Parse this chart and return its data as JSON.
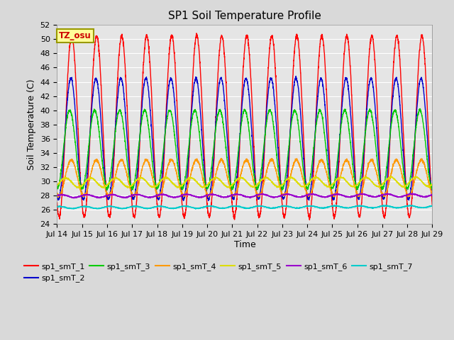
{
  "title": "SP1 Soil Temperature Profile",
  "xlabel": "Time",
  "ylabel": "Soil Temperature (C)",
  "ylim": [
    24,
    52
  ],
  "x_tick_labels": [
    "Jul 14",
    "Jul 15",
    "Jul 16",
    "Jul 17",
    "Jul 18",
    "Jul 19",
    "Jul 20",
    "Jul 21",
    "Jul 22",
    "Jul 23",
    "Jul 24",
    "Jul 25",
    "Jul 26",
    "Jul 27",
    "Jul 28",
    "Jul 29"
  ],
  "annotation_text": "TZ_osu",
  "annotation_color": "#cc0000",
  "annotation_bg": "#ffff99",
  "annotation_border": "#999900",
  "series_colors": {
    "sp1_smT_1": "#ff0000",
    "sp1_smT_2": "#0000cc",
    "sp1_smT_3": "#00cc00",
    "sp1_smT_4": "#ff9900",
    "sp1_smT_5": "#dddd00",
    "sp1_smT_6": "#9900cc",
    "sp1_smT_7": "#00cccc"
  },
  "bg_color": "#d9d9d9",
  "plot_bg_color": "#e5e5e5",
  "grid_color": "#ffffff",
  "n_points": 3000,
  "duration_days": 15,
  "figsize": [
    6.4,
    4.8
  ],
  "dpi": 100
}
